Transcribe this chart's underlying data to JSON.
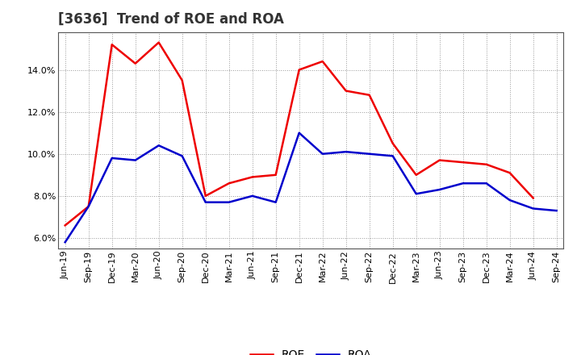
{
  "title": "[3636]  Trend of ROE and ROA",
  "labels": [
    "Jun-19",
    "Sep-19",
    "Dec-19",
    "Mar-20",
    "Jun-20",
    "Sep-20",
    "Dec-20",
    "Mar-21",
    "Jun-21",
    "Sep-21",
    "Dec-21",
    "Mar-22",
    "Jun-22",
    "Sep-22",
    "Dec-22",
    "Mar-23",
    "Jun-23",
    "Sep-23",
    "Dec-23",
    "Mar-24",
    "Jun-24",
    "Sep-24"
  ],
  "roe": [
    6.6,
    7.5,
    15.2,
    14.3,
    15.3,
    13.5,
    8.0,
    8.6,
    8.9,
    9.0,
    14.0,
    14.4,
    13.0,
    12.8,
    10.5,
    9.0,
    9.7,
    9.6,
    9.5,
    9.1,
    7.9,
    null
  ],
  "roa": [
    5.8,
    7.5,
    9.8,
    9.7,
    10.4,
    9.9,
    7.7,
    7.7,
    8.0,
    7.7,
    11.0,
    10.0,
    10.1,
    10.0,
    9.9,
    8.1,
    8.3,
    8.6,
    8.6,
    7.8,
    7.4,
    7.3
  ],
  "roe_color": "#ee0000",
  "roa_color": "#0000cc",
  "background_color": "#ffffff",
  "plot_bg_color": "#ffffff",
  "grid_color": "#999999",
  "ylim": [
    5.5,
    15.8
  ],
  "yticks": [
    6.0,
    8.0,
    10.0,
    12.0,
    14.0
  ],
  "title_fontsize": 12,
  "title_color": "#333333",
  "legend_labels": [
    "ROE",
    "ROA"
  ],
  "line_width": 1.8,
  "tick_fontsize": 8,
  "legend_fontsize": 10
}
